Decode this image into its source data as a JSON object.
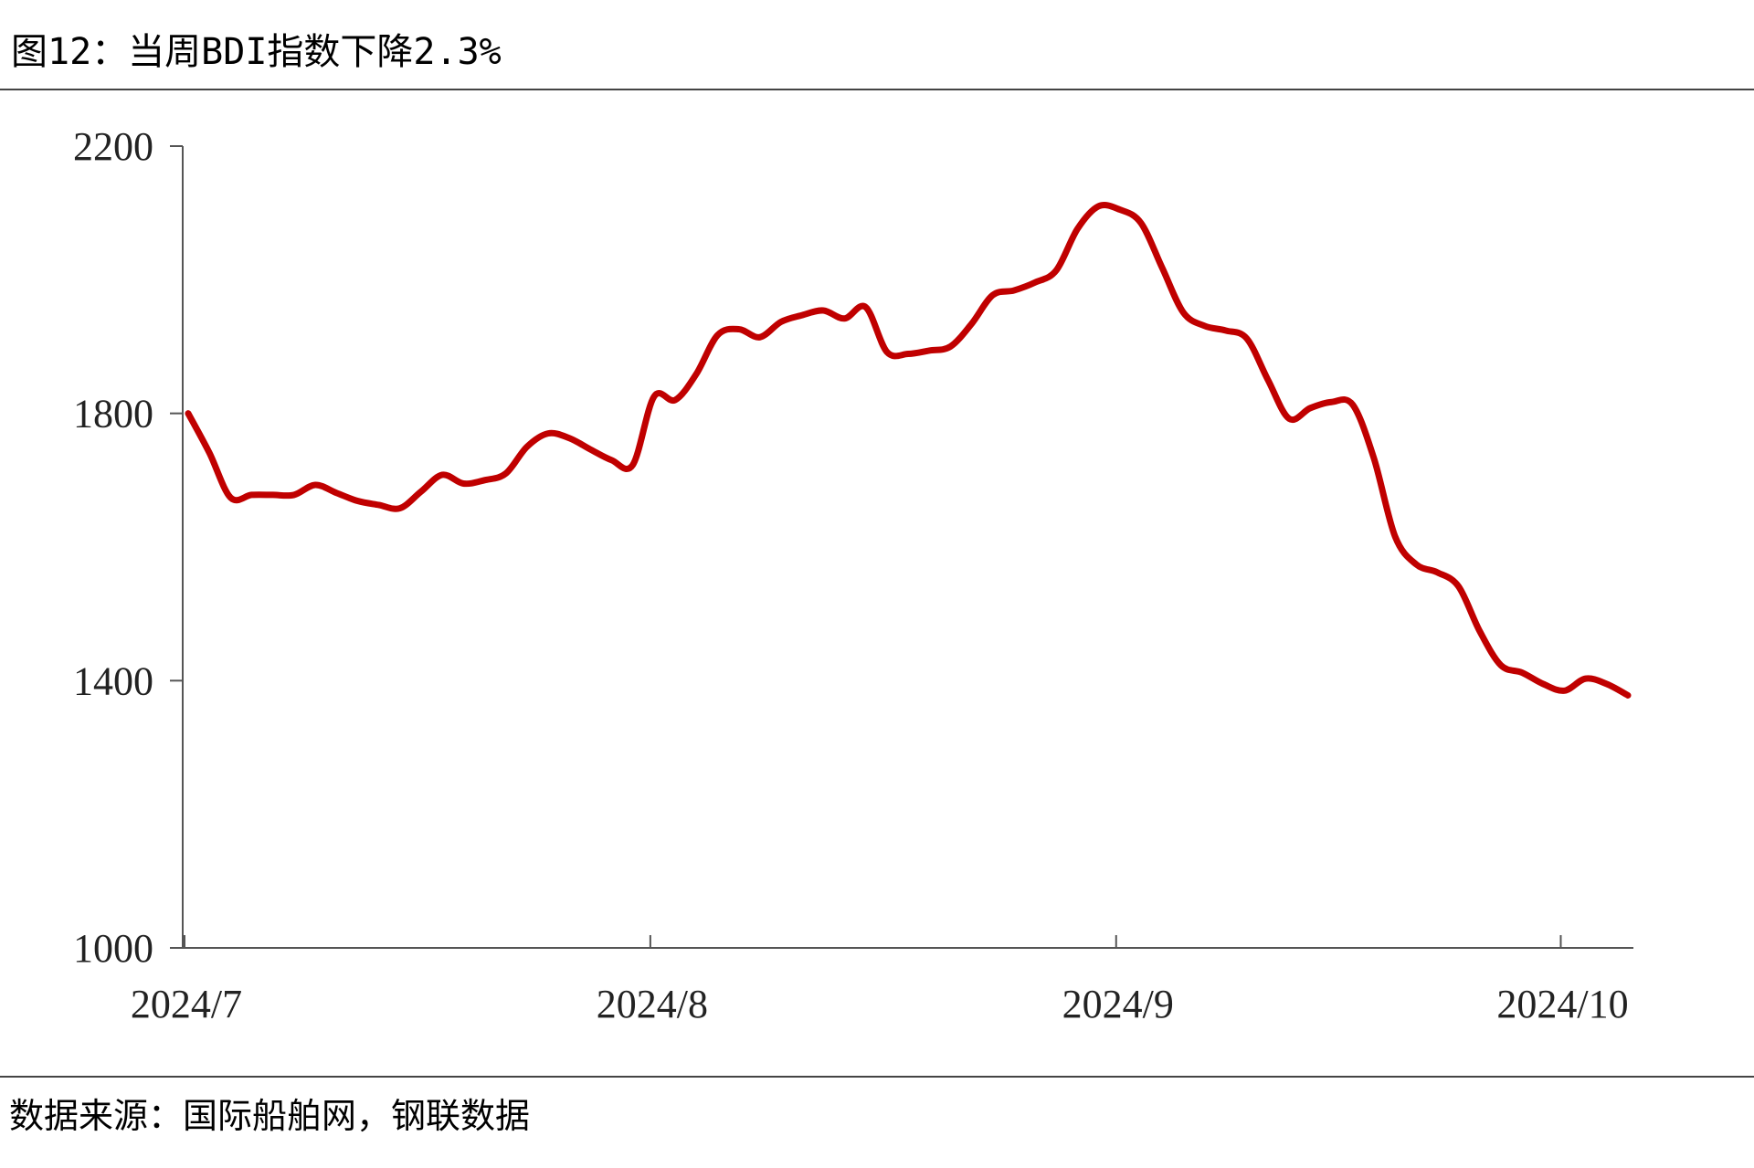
{
  "chart_data": {
    "type": "line",
    "title": "图12：当周BDI指数下降2.3%",
    "source": "数据来源：国际船舶网，钢联数据",
    "color": "#c00000",
    "categories": [
      "2024/7",
      null,
      null,
      null,
      null,
      null,
      null,
      null,
      null,
      null,
      null,
      null,
      null,
      null,
      null,
      null,
      null,
      null,
      null,
      null,
      null,
      null,
      "2024/8",
      null,
      null,
      null,
      null,
      null,
      null,
      null,
      null,
      null,
      null,
      null,
      null,
      null,
      null,
      null,
      null,
      null,
      null,
      null,
      null,
      null,
      "2024/9",
      null,
      null,
      null,
      null,
      null,
      null,
      null,
      null,
      null,
      null,
      null,
      null,
      null,
      null,
      null,
      null,
      null,
      null,
      null,
      null,
      "2024/10",
      null,
      null,
      null
    ],
    "values": [
      1800,
      1741,
      1674,
      1678,
      1678,
      1678,
      1693,
      1681,
      1669,
      1663,
      1658,
      1683,
      1708,
      1695,
      1700,
      1710,
      1750,
      1770,
      1763,
      1746,
      1730,
      1723,
      1825,
      1820,
      1859,
      1917,
      1926,
      1914,
      1937,
      1947,
      1954,
      1942,
      1959,
      1892,
      1889,
      1894,
      1900,
      1934,
      1977,
      1984,
      1996,
      2014,
      2076,
      2110,
      2105,
      2085,
      2018,
      1951,
      1931,
      1924,
      1912,
      1850,
      1792,
      1808,
      1817,
      1813,
      1733,
      1616,
      1574,
      1562,
      1541,
      1474,
      1423,
      1412,
      1395,
      1385,
      1403,
      1395,
      1378
    ],
    "ylim": [
      1000,
      2200
    ],
    "yticks": [
      1000,
      1400,
      1800,
      2200
    ]
  }
}
